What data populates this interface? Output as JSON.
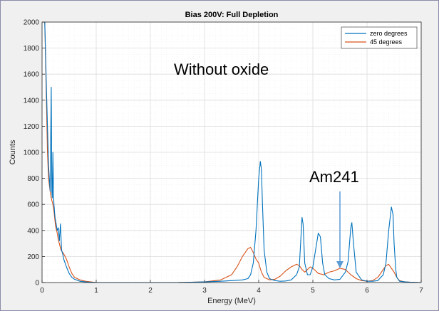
{
  "chart_data": {
    "type": "line",
    "title": "Bias 200V: Full Depletion",
    "xlabel": "Energy (MeV)",
    "ylabel": "Counts",
    "xlim": [
      0,
      7
    ],
    "ylim": [
      0,
      2000
    ],
    "xticks": [
      "0",
      "1",
      "2",
      "3",
      "4",
      "5",
      "6",
      "7"
    ],
    "yticks": [
      "0",
      "200",
      "400",
      "600",
      "800",
      "1000",
      "1200",
      "1400",
      "1600",
      "1800",
      "2000"
    ],
    "grid": true,
    "legend_position": "top-right",
    "series": [
      {
        "name": "zero degrees",
        "color": "#0072bd",
        "x": [
          0.05,
          0.08,
          0.1,
          0.12,
          0.15,
          0.17,
          0.18,
          0.19,
          0.2,
          0.21,
          0.22,
          0.24,
          0.26,
          0.28,
          0.3,
          0.32,
          0.34,
          0.36,
          0.38,
          0.4,
          0.45,
          0.5,
          0.55,
          0.6,
          0.7,
          0.8,
          0.9,
          1.0,
          1.1,
          2.5,
          3.0,
          3.3,
          3.5,
          3.7,
          3.8,
          3.85,
          3.9,
          3.95,
          4.0,
          4.03,
          4.05,
          4.07,
          4.1,
          4.15,
          4.2,
          4.3,
          4.4,
          4.5,
          4.6,
          4.7,
          4.75,
          4.8,
          4.82,
          4.85,
          4.9,
          4.95,
          5.0,
          5.05,
          5.1,
          5.14,
          5.18,
          5.22,
          5.3,
          5.4,
          5.5,
          5.6,
          5.65,
          5.7,
          5.72,
          5.75,
          5.8,
          5.9,
          6.0,
          6.1,
          6.2,
          6.3,
          6.35,
          6.4,
          6.45,
          6.48,
          6.5,
          6.53,
          6.55,
          6.6,
          6.7,
          6.8,
          7.0
        ],
        "y": [
          2000,
          1500,
          1200,
          900,
          700,
          1500,
          700,
          650,
          1000,
          700,
          600,
          500,
          450,
          400,
          420,
          320,
          450,
          250,
          220,
          180,
          120,
          70,
          40,
          25,
          10,
          5,
          2,
          0,
          0,
          0,
          5,
          10,
          15,
          20,
          30,
          60,
          150,
          400,
          800,
          930,
          870,
          600,
          250,
          80,
          30,
          15,
          10,
          12,
          20,
          60,
          120,
          500,
          450,
          150,
          60,
          60,
          120,
          250,
          380,
          350,
          150,
          60,
          30,
          20,
          25,
          80,
          160,
          420,
          460,
          300,
          80,
          20,
          10,
          10,
          15,
          60,
          150,
          400,
          580,
          520,
          300,
          100,
          40,
          10,
          5,
          2,
          0
        ]
      },
      {
        "name": "45 degrees",
        "color": "#d95319",
        "x": [
          0.05,
          0.08,
          0.1,
          0.12,
          0.15,
          0.17,
          0.2,
          0.22,
          0.25,
          0.28,
          0.3,
          0.35,
          0.4,
          0.45,
          0.5,
          0.55,
          0.6,
          0.7,
          0.8,
          0.9,
          1.0,
          1.1,
          2.5,
          3.0,
          3.3,
          3.5,
          3.6,
          3.7,
          3.8,
          3.85,
          3.9,
          3.95,
          4.0,
          4.05,
          4.1,
          4.2,
          4.3,
          4.4,
          4.5,
          4.6,
          4.7,
          4.75,
          4.8,
          4.85,
          4.9,
          4.95,
          5.0,
          5.05,
          5.1,
          5.2,
          5.3,
          5.4,
          5.5,
          5.55,
          5.6,
          5.65,
          5.7,
          5.8,
          5.9,
          6.0,
          6.1,
          6.2,
          6.3,
          6.35,
          6.4,
          6.45,
          6.5,
          6.55,
          6.6,
          6.7,
          6.8,
          7.0
        ],
        "y": [
          2000,
          1400,
          1000,
          800,
          700,
          650,
          600,
          550,
          430,
          380,
          330,
          250,
          220,
          180,
          120,
          70,
          40,
          20,
          10,
          5,
          0,
          0,
          0,
          5,
          20,
          60,
          120,
          200,
          260,
          270,
          230,
          180,
          150,
          80,
          40,
          20,
          25,
          50,
          90,
          120,
          140,
          130,
          100,
          80,
          100,
          120,
          110,
          90,
          70,
          60,
          80,
          90,
          110,
          105,
          100,
          80,
          60,
          30,
          15,
          10,
          15,
          40,
          100,
          130,
          140,
          110,
          80,
          40,
          15,
          5,
          2,
          0
        ]
      }
    ],
    "annotations": [
      "Without oxide",
      "Am241"
    ]
  }
}
